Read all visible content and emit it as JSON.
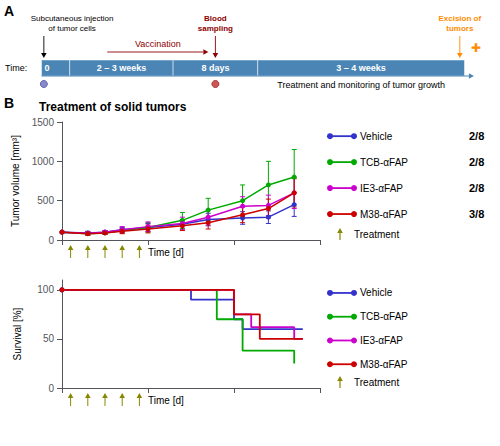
{
  "chart_data": [
    {
      "type": "timeline",
      "color": "#4a85b5",
      "categories": [
        "0",
        "2 – 3 weeks",
        "8 days",
        "3 – 4 weeks"
      ],
      "annotations": [
        {
          "text": "A",
          "color": "#000000"
        },
        {
          "text": "Time:",
          "color": "#000000"
        },
        {
          "text": "Subcutaneous injection\nof tumor cells",
          "color": "#000000"
        },
        {
          "text": "Blood\nsampling",
          "color": "#8b0000"
        },
        {
          "text": "Excision of\ntumors",
          "color": "#ff8c00"
        },
        {
          "text": "✚",
          "color": "#ff8c00"
        },
        {
          "text": "Vaccination",
          "color": "#8b0000"
        },
        {
          "text": "Treatment and monitoring of tumor growth",
          "color": "#000000"
        }
      ]
    },
    {
      "type": "line",
      "title": "Treatment of solid tumors",
      "annotations": [
        "B",
        "Time [d]",
        "Treatment"
      ],
      "ylabel": "Tumor volume [mm³]",
      "xlim": [
        0,
        30
      ],
      "xticks": [
        0,
        10,
        20,
        30
      ],
      "ylim": [
        0,
        1500
      ],
      "yticks": [
        0,
        500,
        1000,
        1500
      ],
      "tick_labels": "y",
      "grid": false,
      "legend": "right",
      "marker": "circle",
      "treatment_x": [
        1,
        3,
        5,
        7,
        9
      ],
      "arrow_color": "#888800",
      "series": [
        {
          "name": "Vehicle",
          "color": "#3333cc",
          "ratio": "2/8",
          "x": [
            0,
            3,
            5,
            7,
            10,
            14,
            17,
            21,
            24,
            27
          ],
          "values": [
            100,
            90,
            100,
            130,
            160,
            200,
            260,
            280,
            290,
            450
          ],
          "yerr": [
            10,
            20,
            20,
            30,
            50,
            60,
            80,
            80,
            80,
            150
          ]
        },
        {
          "name": "TCB-αFAP",
          "color": "#00aa00",
          "ratio": "2/8",
          "x": [
            0,
            3,
            5,
            7,
            10,
            14,
            17,
            21,
            24,
            27
          ],
          "values": [
            100,
            80,
            90,
            120,
            160,
            250,
            380,
            500,
            700,
            800
          ],
          "yerr": [
            10,
            20,
            20,
            30,
            60,
            100,
            150,
            200,
            300,
            350
          ]
        },
        {
          "name": "IE3-αFAP",
          "color": "#cc00cc",
          "ratio": "2/8",
          "x": [
            0,
            3,
            5,
            7,
            10,
            14,
            17,
            21,
            24,
            27
          ],
          "values": [
            100,
            85,
            100,
            130,
            170,
            210,
            290,
            430,
            440,
            600
          ],
          "yerr": [
            10,
            20,
            20,
            40,
            60,
            80,
            100,
            120,
            130,
            200
          ]
        },
        {
          "name": "M38-αFAP",
          "color": "#cc0000",
          "ratio": "3/8",
          "x": [
            0,
            3,
            5,
            7,
            10,
            14,
            17,
            21,
            24,
            27
          ],
          "values": [
            100,
            80,
            90,
            110,
            140,
            180,
            220,
            320,
            400,
            600
          ],
          "yerr": [
            10,
            20,
            20,
            30,
            50,
            60,
            80,
            100,
            120,
            180
          ]
        }
      ]
    },
    {
      "type": "step",
      "annotations": [
        "Time [d]",
        "Treatment"
      ],
      "ylabel": "Survival [%]",
      "xlim": [
        0,
        30
      ],
      "xticks": [
        0,
        10,
        20,
        30
      ],
      "ylim": [
        0,
        110
      ],
      "yticks": [
        0,
        50,
        100
      ],
      "tick_labels": "y",
      "grid": false,
      "legend": "right",
      "marker": "circle",
      "treatment_x": [
        1,
        3,
        5,
        7,
        9
      ],
      "arrow_color": "#888800",
      "series": [
        {
          "name": "Vehicle",
          "color": "#3333cc",
          "x": [
            0,
            14,
            15,
            20,
            21,
            27,
            28
          ],
          "values": [
            100,
            100,
            90,
            70,
            60,
            60,
            60
          ]
        },
        {
          "name": "TCB-αFAP",
          "color": "#00aa00",
          "x": [
            0,
            17,
            18,
            20,
            21,
            26,
            27
          ],
          "values": [
            100,
            100,
            70,
            70,
            38,
            38,
            25
          ]
        },
        {
          "name": "IE3-αFAP",
          "color": "#cc00cc",
          "x": [
            0,
            19,
            20,
            22,
            23,
            27,
            28
          ],
          "values": [
            100,
            100,
            75,
            62,
            62,
            50,
            50
          ]
        },
        {
          "name": "M38-αFAP",
          "color": "#cc0000",
          "x": [
            0,
            19,
            20,
            22,
            23,
            27,
            28
          ],
          "values": [
            100,
            100,
            75,
            75,
            50,
            50,
            50
          ]
        }
      ]
    }
  ]
}
